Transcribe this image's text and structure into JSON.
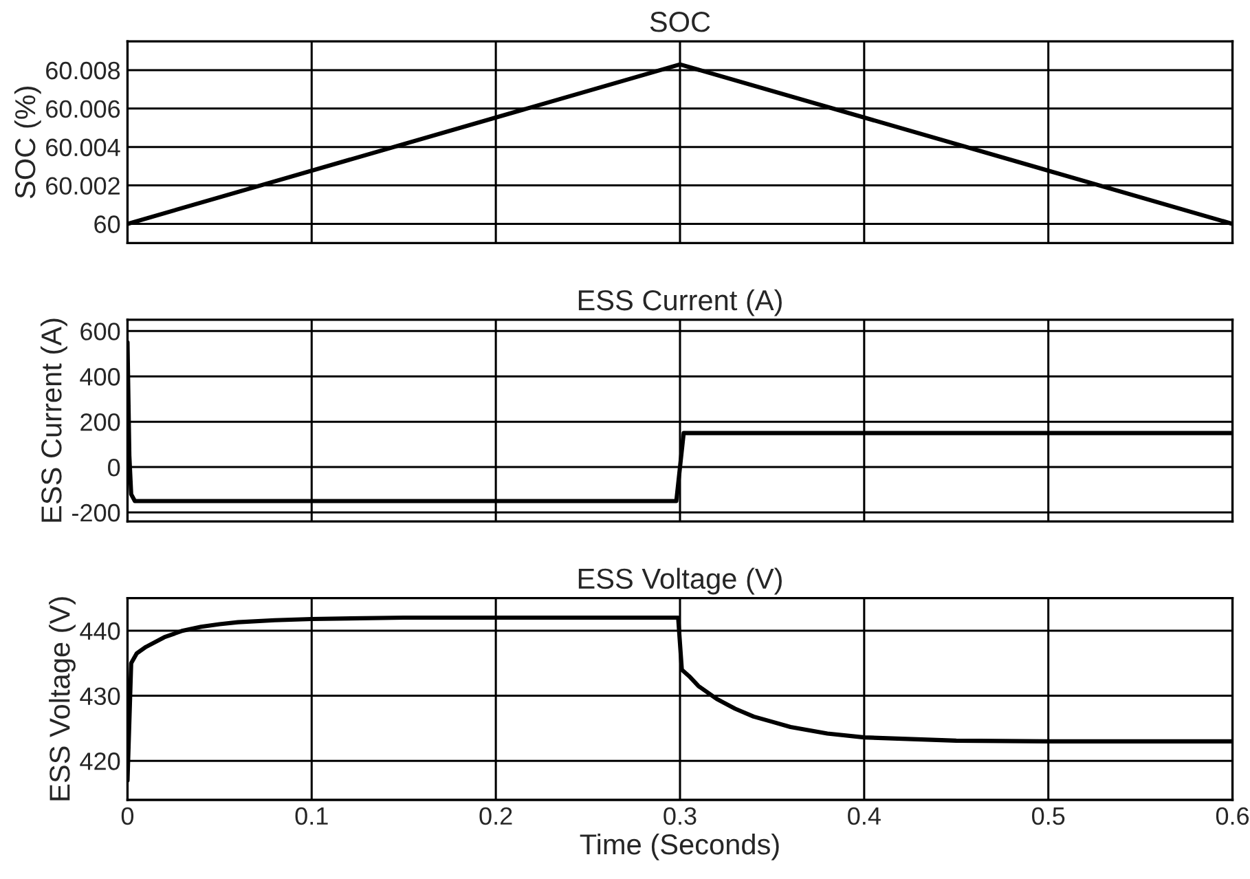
{
  "chart_data": [
    {
      "type": "line",
      "title": "SOC",
      "ylabel": "SOC (%)",
      "xlim": [
        0,
        0.6
      ],
      "xticks": [
        0,
        0.1,
        0.2,
        0.3,
        0.4,
        0.5,
        0.6
      ],
      "ylim": [
        59.999,
        60.0095
      ],
      "yticks": [
        {
          "value": 60,
          "label": "60"
        },
        60.002,
        60.004,
        60.006,
        60.008
      ],
      "grid": true,
      "tick_labels": "y",
      "series": [
        {
          "color": "#000000",
          "x": [
            0,
            0.3,
            0.6
          ],
          "values": [
            60.0,
            60.0083,
            60.0
          ]
        }
      ]
    },
    {
      "type": "line",
      "title": "ESS Current (A)",
      "ylabel": "ESS Current (A)",
      "xlim": [
        0,
        0.6
      ],
      "xticks": [
        0,
        0.1,
        0.2,
        0.3,
        0.4,
        0.5,
        0.6
      ],
      "ylim": [
        -240,
        650
      ],
      "yticks": [
        -200,
        0,
        200,
        400,
        600
      ],
      "grid": true,
      "tick_labels": "y",
      "series": [
        {
          "color": "#000000",
          "x": [
            0,
            0.001,
            0.002,
            0.004,
            0.1,
            0.2,
            0.298,
            0.3,
            0.302,
            0.4,
            0.5,
            0.6
          ],
          "values": [
            550,
            50,
            -120,
            -150,
            -150,
            -150,
            -150,
            0,
            150,
            150,
            150,
            150
          ]
        }
      ]
    },
    {
      "type": "line",
      "title": "ESS Voltage (V)",
      "xlabel": "Time (Seconds)",
      "ylabel": "ESS Voltage (V)",
      "xlim": [
        0,
        0.6
      ],
      "xticks": [
        0,
        0.1,
        0.2,
        0.3,
        0.4,
        0.5,
        0.6
      ],
      "ylim": [
        414,
        445
      ],
      "yticks": [
        420,
        430,
        440
      ],
      "grid": true,
      "series": [
        {
          "color": "#000000",
          "x": [
            0,
            0.002,
            0.005,
            0.01,
            0.02,
            0.03,
            0.04,
            0.05,
            0.06,
            0.08,
            0.1,
            0.15,
            0.2,
            0.25,
            0.299,
            0.301,
            0.305,
            0.31,
            0.32,
            0.33,
            0.34,
            0.35,
            0.36,
            0.38,
            0.4,
            0.45,
            0.5,
            0.55,
            0.6
          ],
          "values": [
            417,
            435,
            436.5,
            437.5,
            439,
            440,
            440.6,
            441,
            441.3,
            441.6,
            441.8,
            442,
            442,
            442,
            442,
            434,
            433,
            431.5,
            429.5,
            428,
            426.8,
            426,
            425.2,
            424.2,
            423.6,
            423.1,
            423,
            423,
            423
          ]
        }
      ]
    }
  ]
}
